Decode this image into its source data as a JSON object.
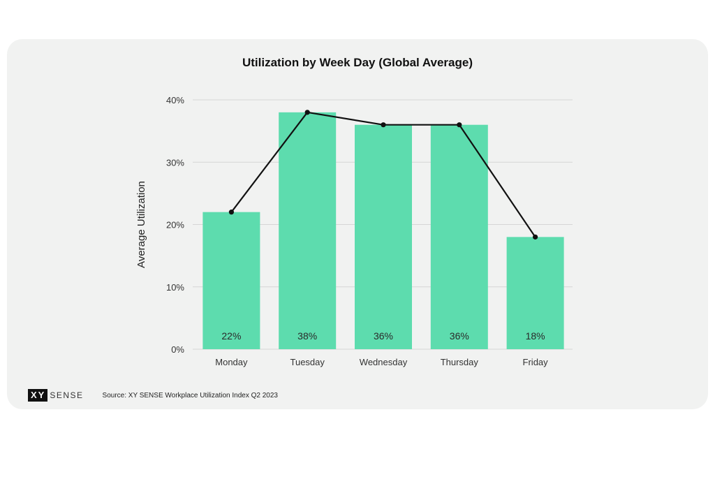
{
  "card": {
    "logo_boxed": "XY",
    "logo_text": "SENSE",
    "source": "Source: XY SENSE Workplace Utilization Index Q2 2023"
  },
  "colors": {
    "background": "#f1f2f1",
    "bar": "#5ddcae",
    "line": "#111111",
    "grid": "#d5d5d5"
  },
  "chart_data": {
    "type": "bar",
    "title": "Utilization by Week Day (Global Average)",
    "xlabel": "",
    "ylabel": "Average Utilization",
    "categories": [
      "Monday",
      "Tuesday",
      "Wednesday",
      "Thursday",
      "Friday"
    ],
    "values": [
      22,
      38,
      36,
      36,
      18
    ],
    "data_labels": [
      "22%",
      "38%",
      "36%",
      "36%",
      "18%"
    ],
    "overlay_line": {
      "type": "line",
      "values": [
        22,
        38,
        36,
        36,
        18
      ]
    },
    "ylim": [
      0,
      40
    ],
    "yticks": [
      0,
      10,
      20,
      30,
      40
    ],
    "ytick_labels": [
      "0%",
      "10%",
      "20%",
      "30%",
      "40%"
    ],
    "grid": true,
    "legend": "none"
  }
}
